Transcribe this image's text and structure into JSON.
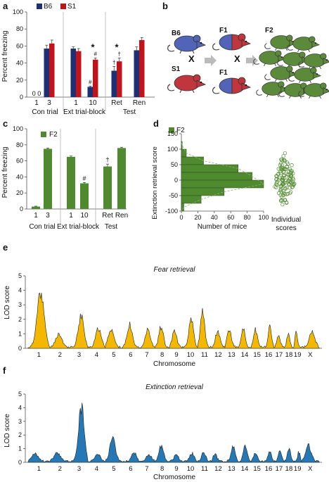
{
  "panels": {
    "a": "a",
    "b": "b",
    "c": "c",
    "d": "d",
    "e": "e",
    "f": "f"
  },
  "colors": {
    "b6": "#1f2f73",
    "s1": "#c0141b",
    "f2": "#4f8a2e",
    "fear": "#f5b800",
    "ext": "#2478b5",
    "mouse_blue": "#5264b8",
    "mouse_red": "#c0363c",
    "mouse_green": "#5a8a3a"
  },
  "figure_b": {
    "b6_label": "B6",
    "s1_label": "S1",
    "cross1": "X",
    "f1_top": "F1",
    "f1_bottom": "F1",
    "cross2": "X",
    "f2_label": "F2"
  },
  "chart_data": [
    {
      "id": "a",
      "type": "bar",
      "ylabel": "Percent freezing",
      "ylim": [
        0,
        100
      ],
      "yticks": [
        0,
        20,
        40,
        60,
        80,
        100
      ],
      "legend": [
        "B6",
        "S1"
      ],
      "groups": [
        {
          "tick": "1",
          "b6": 0,
          "s1": 0,
          "b6_err": 0,
          "s1_err": 0,
          "value_label": "0 0"
        },
        {
          "tick": "3",
          "b6": 57,
          "s1": 63,
          "b6_err": 4,
          "s1_err": 4
        },
        {
          "tick": "1",
          "b6": 57,
          "s1": 54,
          "b6_err": 2,
          "s1_err": 3
        },
        {
          "tick": "10",
          "b6": 12,
          "s1": 44,
          "b6_err": 1,
          "s1_err": 2,
          "b6_mark": "#",
          "s1_mark": "#",
          "star": "*"
        },
        {
          "tick": "Ret",
          "b6": 31,
          "s1": 42,
          "b6_err": 5,
          "s1_err": 4,
          "b6_mark": "†",
          "s1_mark": "†",
          "star": "*"
        },
        {
          "tick": "Ren",
          "b6": 55,
          "s1": 67,
          "b6_err": 4,
          "s1_err": 3
        }
      ],
      "section_labels": [
        "Con trial",
        "Ext trial-block",
        "Test"
      ]
    },
    {
      "id": "c",
      "type": "bar",
      "ylabel": "Percent freezing",
      "ylim": [
        0,
        100
      ],
      "yticks": [
        0,
        20,
        40,
        60,
        80,
        100
      ],
      "legend": [
        "F2"
      ],
      "categories": [
        "1",
        "3",
        "1",
        "10",
        "Ret",
        "Ren"
      ],
      "values": [
        3,
        75,
        65,
        32,
        53,
        76
      ],
      "errors": [
        0.5,
        1,
        1,
        1,
        3,
        1
      ],
      "marks": [
        "",
        "",
        "",
        "#",
        "†",
        ""
      ],
      "section_labels": [
        "Con trial",
        "Ext trial-block",
        "Test"
      ]
    },
    {
      "id": "d",
      "type": "bar",
      "orientation": "horizontal",
      "legend": [
        "F2"
      ],
      "ylabel": "Extinction retrieval score",
      "xlabel": "Number of mice",
      "ylim": [
        -100,
        150
      ],
      "yticks": [
        -100,
        -50,
        0,
        50,
        100,
        150
      ],
      "xlim": [
        0,
        100
      ],
      "xticks": [
        0,
        20,
        40,
        60,
        80,
        100
      ],
      "bins": [
        {
          "from": 100,
          "to": 125,
          "count": 1
        },
        {
          "from": 75,
          "to": 100,
          "count": 6
        },
        {
          "from": 50,
          "to": 75,
          "count": 27
        },
        {
          "from": 25,
          "to": 50,
          "count": 69
        },
        {
          "from": 0,
          "to": 25,
          "count": 86
        },
        {
          "from": -25,
          "to": 0,
          "count": 100
        },
        {
          "from": -50,
          "to": -25,
          "count": 52
        },
        {
          "from": -75,
          "to": -50,
          "count": 24
        },
        {
          "from": -100,
          "to": -75,
          "count": 3
        }
      ],
      "individual_label": "Individual scores"
    },
    {
      "id": "e",
      "type": "area",
      "title": "Fear retrieval",
      "ylabel": "LOD score",
      "xlabel": "Chromosome",
      "ylim": [
        0,
        5
      ],
      "yticks": [
        0,
        1,
        2,
        3,
        4,
        5
      ],
      "chromosomes": [
        "1",
        "2",
        "3",
        "4",
        "5",
        "6",
        "7",
        "8",
        "9",
        "10",
        "11",
        "12",
        "13",
        "14",
        "15",
        "16",
        "17",
        "18",
        "19",
        "X"
      ],
      "peak_lod": [
        4.5,
        1.0,
        2.5,
        1.5,
        1.5,
        1.7,
        1.4,
        1.6,
        1.3,
        2.3,
        2.7,
        1.3,
        1.4,
        1.4,
        1.4,
        1.6,
        1.0,
        1.0,
        1.2,
        1.2
      ]
    },
    {
      "id": "f",
      "type": "area",
      "title": "Extinction retrieval",
      "ylabel": "LOD score",
      "xlabel": "Chromosome",
      "ylim": [
        0,
        5
      ],
      "yticks": [
        0,
        1,
        2,
        3,
        4,
        5
      ],
      "chromosomes": [
        "1",
        "2",
        "3",
        "4",
        "5",
        "6",
        "7",
        "8",
        "9",
        "10",
        "11",
        "12",
        "13",
        "14",
        "15",
        "16",
        "17",
        "18",
        "19",
        "X"
      ],
      "peak_lod": [
        0.6,
        0.7,
        4.6,
        0.7,
        2.0,
        0.7,
        0.6,
        1.3,
        0.6,
        0.7,
        0.7,
        0.6,
        1.2,
        1.3,
        0.7,
        0.8,
        0.9,
        1.1,
        0.8,
        1.3
      ]
    }
  ]
}
